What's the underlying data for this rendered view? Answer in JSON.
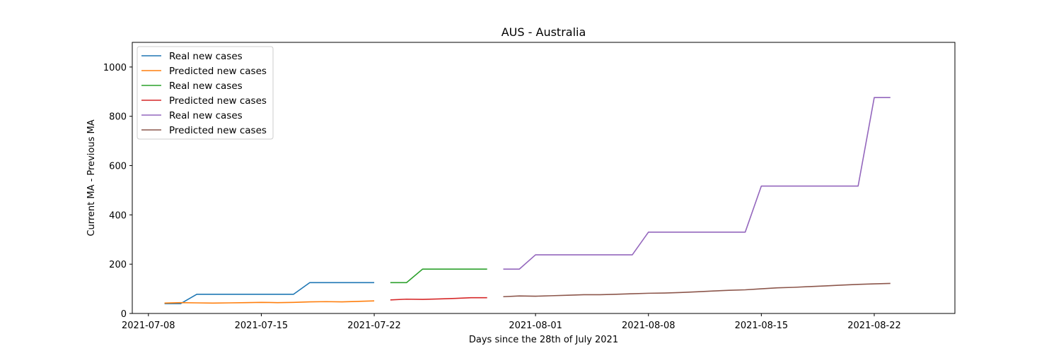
{
  "chart_data": {
    "type": "line",
    "title": "AUS - Australia",
    "xlabel": "Days since the 28th of July 2021",
    "ylabel": "Current MA - Previous MA",
    "x_ticks": [
      "2021-07-08",
      "2021-07-15",
      "2021-07-22",
      "2021-08-01",
      "2021-08-08",
      "2021-08-15",
      "2021-08-22"
    ],
    "y_ticks": [
      0,
      200,
      400,
      600,
      800,
      1000
    ],
    "xlim": [
      "2021-07-07",
      "2021-08-27"
    ],
    "ylim": [
      0,
      1100
    ],
    "grid": false,
    "legend_position": "top-left",
    "series": [
      {
        "name": "Real new cases",
        "color": "#1f77b4",
        "x": [
          "2021-07-09",
          "2021-07-10",
          "2021-07-11",
          "2021-07-12",
          "2021-07-13",
          "2021-07-14",
          "2021-07-15",
          "2021-07-16",
          "2021-07-17",
          "2021-07-18",
          "2021-07-19",
          "2021-07-20",
          "2021-07-21",
          "2021-07-22"
        ],
        "y": [
          40,
          40,
          78,
          78,
          78,
          78,
          78,
          78,
          78,
          125,
          125,
          125,
          125,
          125
        ]
      },
      {
        "name": "Predicted new cases",
        "color": "#ff7f0e",
        "x": [
          "2021-07-09",
          "2021-07-10",
          "2021-07-11",
          "2021-07-12",
          "2021-07-13",
          "2021-07-14",
          "2021-07-15",
          "2021-07-16",
          "2021-07-17",
          "2021-07-18",
          "2021-07-19",
          "2021-07-20",
          "2021-07-21",
          "2021-07-22"
        ],
        "y": [
          42,
          44,
          43,
          42,
          43,
          44,
          45,
          44,
          45,
          47,
          48,
          47,
          49,
          51
        ]
      },
      {
        "name": "Real new cases",
        "color": "#2ca02c",
        "x": [
          "2021-07-23",
          "2021-07-24",
          "2021-07-25",
          "2021-07-26",
          "2021-07-27",
          "2021-07-28",
          "2021-07-29"
        ],
        "y": [
          125,
          125,
          180,
          180,
          180,
          180,
          180
        ]
      },
      {
        "name": "Predicted new cases",
        "color": "#d62728",
        "x": [
          "2021-07-23",
          "2021-07-24",
          "2021-07-25",
          "2021-07-26",
          "2021-07-27",
          "2021-07-28",
          "2021-07-29"
        ],
        "y": [
          55,
          58,
          57,
          59,
          61,
          64,
          64
        ]
      },
      {
        "name": "Real new cases",
        "color": "#9467bd",
        "x": [
          "2021-07-30",
          "2021-07-31",
          "2021-08-01",
          "2021-08-02",
          "2021-08-03",
          "2021-08-04",
          "2021-08-05",
          "2021-08-06",
          "2021-08-07",
          "2021-08-08",
          "2021-08-09",
          "2021-08-10",
          "2021-08-11",
          "2021-08-12",
          "2021-08-13",
          "2021-08-14",
          "2021-08-15",
          "2021-08-16",
          "2021-08-17",
          "2021-08-18",
          "2021-08-19",
          "2021-08-20",
          "2021-08-21",
          "2021-08-22",
          "2021-08-23"
        ],
        "y": [
          180,
          180,
          238,
          238,
          238,
          238,
          238,
          238,
          238,
          330,
          330,
          330,
          330,
          330,
          330,
          330,
          517,
          517,
          517,
          517,
          517,
          517,
          517,
          876,
          876
        ]
      },
      {
        "name": "Predicted new cases",
        "color": "#8c564b",
        "x": [
          "2021-07-30",
          "2021-07-31",
          "2021-08-01",
          "2021-08-02",
          "2021-08-03",
          "2021-08-04",
          "2021-08-05",
          "2021-08-06",
          "2021-08-07",
          "2021-08-08",
          "2021-08-09",
          "2021-08-10",
          "2021-08-11",
          "2021-08-12",
          "2021-08-13",
          "2021-08-14",
          "2021-08-15",
          "2021-08-16",
          "2021-08-17",
          "2021-08-18",
          "2021-08-19",
          "2021-08-20",
          "2021-08-21",
          "2021-08-22",
          "2021-08-23"
        ],
        "y": [
          68,
          71,
          70,
          72,
          74,
          76,
          76,
          78,
          80,
          82,
          83,
          85,
          88,
          91,
          94,
          96,
          100,
          104,
          106,
          109,
          112,
          115,
          118,
          120,
          122
        ]
      }
    ]
  }
}
